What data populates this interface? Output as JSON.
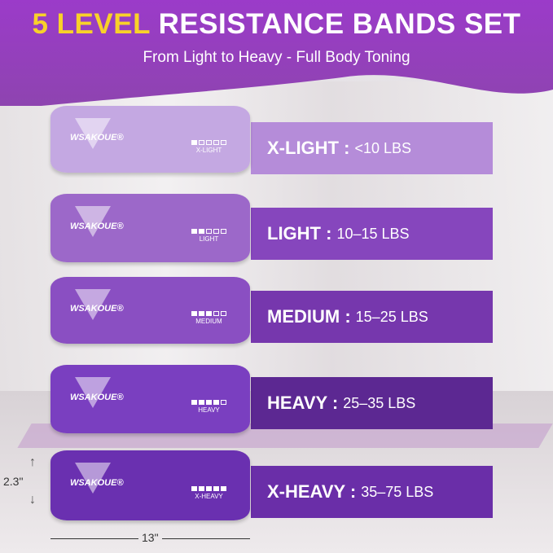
{
  "header": {
    "title_highlight": "5 LEVEL",
    "title_rest": "RESISTANCE BANDS SET",
    "subtitle": "From Light to Heavy - Full Body Toning"
  },
  "brand": "WSAKOUE®",
  "bands": [
    {
      "level": "X-LIGHT",
      "label": "X-LIGHT :",
      "range": "<10 LBS",
      "filled": 1,
      "band_color": "#c4a8e2",
      "tag_color": "#b58cd9"
    },
    {
      "level": "LIGHT",
      "label": "LIGHT :",
      "range": "10–15 LBS",
      "filled": 2,
      "band_color": "#9c68c9",
      "tag_color": "#8646bd"
    },
    {
      "level": "MEDIUM",
      "label": "MEDIUM :",
      "range": "15–25 LBS",
      "filled": 3,
      "band_color": "#8a4fc2",
      "tag_color": "#7637ad"
    },
    {
      "level": "HEAVY",
      "label": "HEAVY :",
      "range": "25–35 LBS",
      "filled": 4,
      "band_color": "#7a3fc0",
      "tag_color": "#5c2892"
    },
    {
      "level": "X-HEAVY",
      "label": "X-HEAVY :",
      "range": "35–75 LBS",
      "filled": 5,
      "band_color": "#6a30b0",
      "tag_color": "#6a2ea8"
    }
  ],
  "dimensions": {
    "height": "2.3\"",
    "width": "13\""
  }
}
